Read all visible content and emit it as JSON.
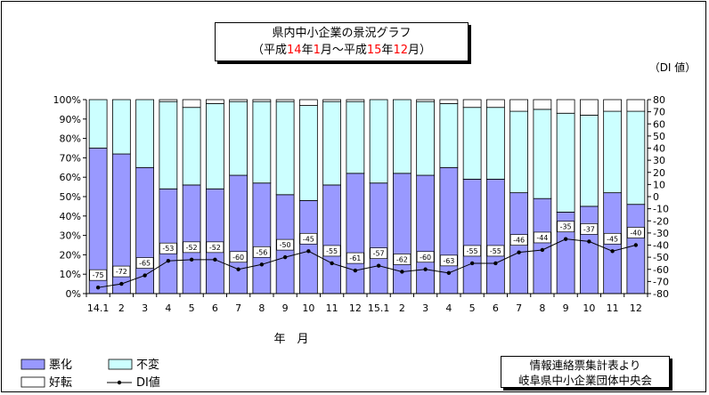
{
  "title": {
    "line1": "県内中小企業の景況グラフ",
    "line2_parts": [
      "（平成",
      "14",
      "年",
      "1",
      "月～平成",
      "15",
      "年",
      "12",
      "月）"
    ]
  },
  "right_axis_label": "（DI 値）",
  "x_axis_label": "年　月",
  "source": {
    "line1": "情報連絡票集計表より",
    "line2": "岐阜県中小企業団体中央会"
  },
  "colors": {
    "worse": "#9999ff",
    "unchanged": "#ccffff",
    "better": "#ffffff",
    "di": "#000000"
  },
  "chart_data": {
    "type": "bar",
    "stacked": true,
    "categories": [
      "14.1",
      "2",
      "3",
      "4",
      "5",
      "6",
      "7",
      "8",
      "9",
      "10",
      "11",
      "12",
      "15.1",
      "2",
      "3",
      "4",
      "5",
      "6",
      "7",
      "8",
      "9",
      "10",
      "11",
      "12"
    ],
    "series": [
      {
        "name": "悪化",
        "values": [
          75,
          72,
          65,
          54,
          56,
          54,
          61,
          57,
          51,
          48,
          56,
          62,
          57,
          62,
          61,
          65,
          59,
          59,
          52,
          49,
          42,
          45,
          52,
          46
        ]
      },
      {
        "name": "不変",
        "values": [
          25,
          28,
          35,
          45,
          40,
          44,
          38,
          42,
          48,
          49,
          43,
          37,
          43,
          38,
          38,
          33,
          37,
          37,
          42,
          46,
          51,
          47,
          42,
          48
        ]
      },
      {
        "name": "好転",
        "values": [
          0,
          0,
          0,
          1,
          4,
          2,
          1,
          1,
          1,
          3,
          1,
          1,
          0,
          0,
          1,
          2,
          4,
          4,
          6,
          5,
          7,
          8,
          6,
          6
        ]
      }
    ],
    "di_series": {
      "name": "DI値",
      "values": [
        -75,
        -72,
        -65,
        -53,
        -52,
        -52,
        -60,
        -56,
        -50,
        -45,
        -55,
        -61,
        -57,
        -62,
        -60,
        -63,
        -55,
        -55,
        -46,
        -44,
        -35,
        -37,
        -45,
        -40
      ]
    },
    "left_axis": {
      "ylim": [
        0,
        100
      ],
      "ticks": [
        "0%",
        "10%",
        "20%",
        "30%",
        "40%",
        "50%",
        "60%",
        "70%",
        "80%",
        "90%",
        "100%"
      ]
    },
    "right_axis": {
      "ylim": [
        -80,
        80
      ],
      "ticks": [
        "-80",
        "-70",
        "-60",
        "-50",
        "-40",
        "-30",
        "-20",
        "-10",
        "0",
        "10",
        "20",
        "30",
        "40",
        "50",
        "60",
        "70",
        "80"
      ]
    },
    "legend": {
      "position": "bottom-left",
      "entries": [
        "悪化",
        "不変",
        "好転",
        "DI値"
      ]
    }
  }
}
